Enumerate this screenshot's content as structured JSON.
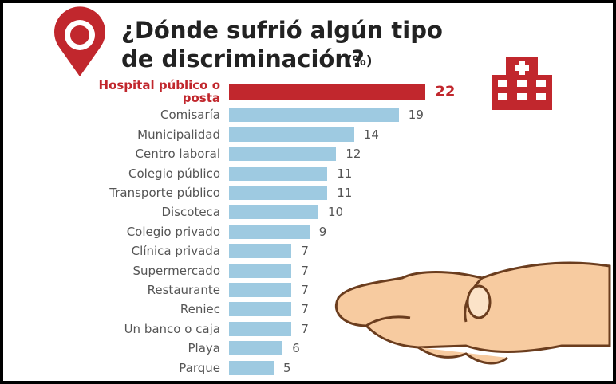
{
  "chart_data": {
    "type": "bar",
    "title": [
      "¿Dónde sufrió algún tipo",
      "de discriminación?"
    ],
    "unit": "(%)",
    "categories": [
      "Hospital público o posta",
      "Comisaría",
      "Municipalidad",
      "Centro laboral",
      "Colegio público",
      "Transporte público",
      "Discoteca",
      "Colegio privado",
      "Clínica privada",
      "Supermercado",
      "Restaurante",
      "Reniec",
      "Un banco o caja",
      "Playa",
      "Parque"
    ],
    "values": [
      22,
      19,
      14,
      12,
      11,
      11,
      10,
      9,
      7,
      7,
      7,
      7,
      7,
      6,
      5
    ],
    "colors": [
      "#c1272d",
      "#9ecae1",
      "#9ecae1",
      "#9ecae1",
      "#9ecae1",
      "#9ecae1",
      "#9ecae1",
      "#9ecae1",
      "#9ecae1",
      "#9ecae1",
      "#9ecae1",
      "#9ecae1",
      "#9ecae1",
      "#9ecae1",
      "#9ecae1"
    ]
  }
}
